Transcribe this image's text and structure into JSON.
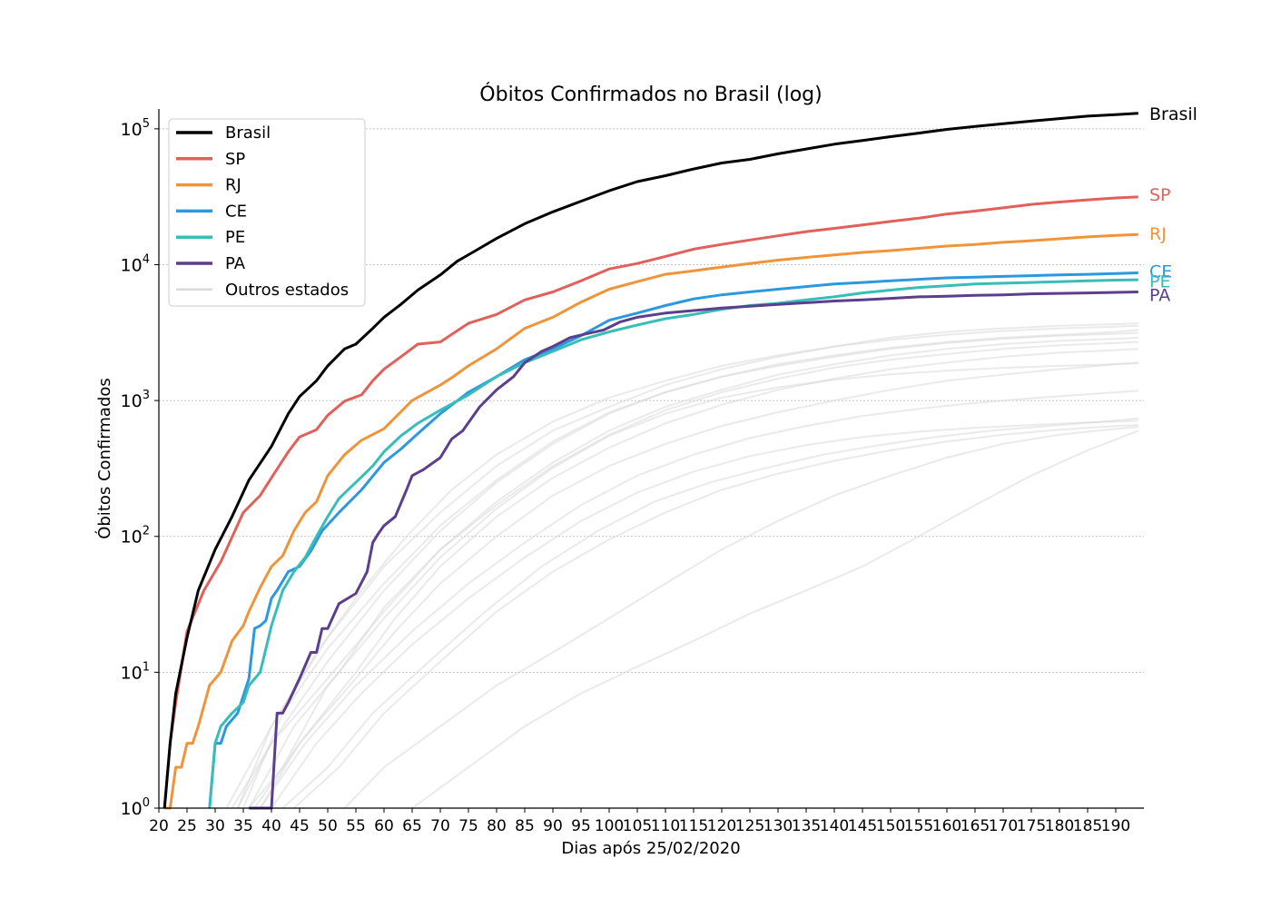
{
  "chart_data": {
    "type": "line",
    "title": "Óbitos Confirmados no Brasil (log)",
    "xlabel": "Dias após 25/02/2020",
    "ylabel": "Óbitos Confirmados",
    "yscale": "log",
    "xlim": [
      20,
      195
    ],
    "ylim": [
      1,
      140000
    ],
    "xticks": [
      20,
      25,
      30,
      35,
      40,
      45,
      50,
      55,
      60,
      65,
      70,
      75,
      80,
      85,
      90,
      95,
      100,
      105,
      110,
      115,
      120,
      125,
      130,
      135,
      140,
      145,
      150,
      155,
      160,
      165,
      170,
      175,
      180,
      185,
      190
    ],
    "yticks": [
      {
        "value": 1,
        "base": "10",
        "exp": "0"
      },
      {
        "value": 10,
        "base": "10",
        "exp": "1"
      },
      {
        "value": 100,
        "base": "10",
        "exp": "2"
      },
      {
        "value": 1000,
        "base": "10",
        "exp": "3"
      },
      {
        "value": 10000,
        "base": "10",
        "exp": "4"
      },
      {
        "value": 100000,
        "base": "10",
        "exp": "5"
      }
    ],
    "grid": "horizontal",
    "legend_position": "top-left",
    "series": [
      {
        "name": "Brasil",
        "color": "#000000",
        "label": "Brasil",
        "x": [
          21,
          22,
          23,
          25,
          27,
          30,
          33,
          36,
          40,
          43,
          45,
          48,
          50,
          53,
          55,
          58,
          60,
          63,
          66,
          70,
          73,
          76,
          80,
          85,
          90,
          95,
          100,
          105,
          110,
          115,
          120,
          125,
          130,
          135,
          140,
          145,
          150,
          155,
          160,
          165,
          170,
          175,
          180,
          185,
          190,
          194
        ],
        "y": [
          1,
          3,
          7,
          18,
          40,
          80,
          140,
          260,
          460,
          800,
          1070,
          1400,
          1800,
          2400,
          2600,
          3400,
          4100,
          5100,
          6500,
          8400,
          10600,
          12500,
          15600,
          20000,
          24500,
          29300,
          35000,
          40900,
          45200,
          50600,
          56000,
          59600,
          65500,
          71000,
          77000,
          82000,
          87500,
          93000,
          99000,
          104000,
          109000,
          114000,
          119000,
          124000,
          127000,
          130000
        ]
      },
      {
        "name": "SP",
        "color": "#e2605a",
        "label": "SP",
        "x": [
          21,
          22,
          23,
          25,
          28,
          31,
          35,
          38,
          40,
          43,
          45,
          48,
          50,
          53,
          56,
          58,
          60,
          63,
          66,
          70,
          75,
          80,
          85,
          90,
          95,
          100,
          105,
          110,
          115,
          120,
          125,
          130,
          135,
          140,
          145,
          150,
          155,
          160,
          165,
          170,
          175,
          180,
          185,
          190,
          194
        ],
        "y": [
          1,
          3,
          6,
          20,
          40,
          65,
          150,
          200,
          270,
          420,
          540,
          610,
          780,
          990,
          1100,
          1400,
          1700,
          2100,
          2600,
          2700,
          3700,
          4300,
          5500,
          6300,
          7600,
          9300,
          10200,
          11500,
          13000,
          14100,
          15200,
          16300,
          17500,
          18500,
          19600,
          20800,
          22000,
          23600,
          24800,
          26200,
          27800,
          28900,
          30000,
          31000,
          31500
        ]
      },
      {
        "name": "RJ",
        "color": "#f0943a",
        "label": "RJ",
        "x": [
          21,
          22,
          23,
          24,
          25,
          26,
          27,
          29,
          31,
          33,
          35,
          36,
          38,
          40,
          42,
          44,
          46,
          48,
          50,
          53,
          56,
          60,
          65,
          70,
          72,
          75,
          80,
          85,
          90,
          95,
          100,
          105,
          110,
          115,
          120,
          125,
          130,
          135,
          140,
          145,
          150,
          155,
          160,
          165,
          170,
          175,
          180,
          185,
          190,
          194
        ],
        "y": [
          1,
          1,
          2,
          2,
          3,
          3,
          4,
          8,
          10,
          17,
          22,
          28,
          42,
          60,
          72,
          110,
          150,
          180,
          280,
          400,
          510,
          620,
          1000,
          1300,
          1470,
          1800,
          2400,
          3400,
          4100,
          5300,
          6600,
          7500,
          8500,
          9000,
          9600,
          10200,
          10800,
          11300,
          11800,
          12300,
          12700,
          13200,
          13700,
          14100,
          14600,
          15000,
          15500,
          16000,
          16400,
          16700
        ]
      },
      {
        "name": "CE",
        "color": "#2b98df",
        "label": "CE",
        "x": [
          29,
          30,
          31,
          32,
          34,
          36,
          37,
          38,
          39,
          40,
          41,
          43,
          45,
          47,
          49,
          52,
          56,
          60,
          63,
          66,
          70,
          75,
          80,
          85,
          90,
          95,
          100,
          105,
          110,
          115,
          120,
          125,
          130,
          135,
          140,
          145,
          150,
          155,
          160,
          165,
          170,
          175,
          180,
          185,
          190,
          194
        ],
        "y": [
          1,
          3,
          3,
          4,
          5,
          9,
          21,
          22,
          24,
          35,
          40,
          55,
          60,
          78,
          110,
          150,
          220,
          350,
          440,
          570,
          800,
          1150,
          1500,
          2000,
          2400,
          3000,
          3900,
          4400,
          5000,
          5600,
          6000,
          6300,
          6600,
          6900,
          7200,
          7400,
          7600,
          7800,
          8000,
          8100,
          8200,
          8300,
          8400,
          8500,
          8600,
          8700
        ]
      },
      {
        "name": "PE",
        "color": "#38bdb8",
        "label": "PE",
        "x": [
          29,
          30,
          31,
          33,
          35,
          36,
          38,
          40,
          42,
          44,
          46,
          48,
          50,
          52,
          55,
          58,
          60,
          63,
          66,
          70,
          75,
          80,
          85,
          90,
          95,
          100,
          105,
          110,
          115,
          120,
          125,
          130,
          135,
          140,
          145,
          150,
          155,
          160,
          165,
          170,
          175,
          180,
          185,
          190,
          194
        ],
        "y": [
          1,
          3,
          4,
          5,
          6,
          8,
          10,
          22,
          40,
          55,
          70,
          100,
          140,
          190,
          250,
          330,
          420,
          550,
          680,
          850,
          1100,
          1500,
          1900,
          2300,
          2800,
          3200,
          3600,
          4000,
          4300,
          4700,
          5000,
          5200,
          5500,
          5800,
          6200,
          6500,
          6800,
          7000,
          7200,
          7300,
          7400,
          7500,
          7600,
          7700,
          7750
        ]
      },
      {
        "name": "PA",
        "color": "#5b3f8c",
        "label": "PA",
        "x": [
          36,
          37,
          39,
          40,
          41,
          42,
          43,
          45,
          47,
          48,
          49,
          50,
          52,
          55,
          57,
          58,
          59,
          60,
          62,
          64,
          65,
          67,
          70,
          72,
          74,
          77,
          80,
          83,
          85,
          88,
          90,
          93,
          96,
          99,
          102,
          105,
          110,
          115,
          120,
          125,
          130,
          135,
          140,
          145,
          150,
          155,
          160,
          165,
          170,
          175,
          180,
          185,
          190,
          194
        ],
        "y": [
          1,
          1,
          1,
          1,
          5,
          5,
          6,
          9,
          14,
          14,
          21,
          21,
          32,
          38,
          55,
          90,
          105,
          120,
          140,
          220,
          280,
          310,
          380,
          520,
          600,
          900,
          1200,
          1500,
          1900,
          2300,
          2500,
          2900,
          3100,
          3300,
          3800,
          4100,
          4400,
          4600,
          4800,
          4950,
          5100,
          5250,
          5400,
          5500,
          5650,
          5800,
          5850,
          5950,
          6000,
          6100,
          6150,
          6200,
          6250,
          6300
        ]
      }
    ],
    "other_states_label": "Outros estados",
    "other_states_color": "#d9d9d9",
    "other_states": [
      {
        "x": [
          32,
          40,
          50,
          60,
          70,
          80,
          90,
          100,
          110,
          120,
          130,
          140,
          150,
          160,
          170,
          180,
          190,
          194
        ],
        "y": [
          1,
          4,
          18,
          60,
          150,
          330,
          600,
          900,
          1300,
          1700,
          2100,
          2500,
          2900,
          3200,
          3400,
          3550,
          3650,
          3700
        ]
      },
      {
        "x": [
          34,
          40,
          50,
          60,
          70,
          80,
          90,
          100,
          110,
          120,
          130,
          140,
          150,
          160,
          170,
          180,
          190,
          194
        ],
        "y": [
          1,
          3,
          12,
          40,
          110,
          250,
          480,
          800,
          1150,
          1500,
          1850,
          2150,
          2450,
          2700,
          2900,
          3050,
          3200,
          3300
        ]
      },
      {
        "x": [
          35,
          42,
          50,
          60,
          70,
          80,
          90,
          100,
          110,
          120,
          130,
          140,
          150,
          160,
          170,
          180,
          190,
          194
        ],
        "y": [
          1,
          5,
          15,
          45,
          120,
          260,
          500,
          820,
          1150,
          1500,
          1800,
          2100,
          2400,
          2650,
          2850,
          3000,
          3100,
          3150
        ]
      },
      {
        "x": [
          33,
          40,
          50,
          60,
          70,
          80,
          90,
          100,
          110,
          120,
          130,
          140,
          150,
          160,
          170,
          180,
          190,
          194
        ],
        "y": [
          1,
          3,
          9,
          28,
          80,
          180,
          350,
          600,
          900,
          1200,
          1550,
          1850,
          2150,
          2400,
          2600,
          2750,
          2850,
          2900
        ]
      },
      {
        "x": [
          36,
          44,
          52,
          60,
          70,
          80,
          90,
          100,
          110,
          120,
          130,
          140,
          150,
          160,
          170,
          180,
          190,
          194
        ],
        "y": [
          1,
          4,
          10,
          30,
          80,
          170,
          330,
          560,
          850,
          1150,
          1450,
          1750,
          2000,
          2200,
          2400,
          2550,
          2650,
          2700
        ]
      },
      {
        "x": [
          38,
          45,
          55,
          62,
          70,
          80,
          90,
          100,
          110,
          120,
          130,
          140,
          150,
          160,
          170,
          180,
          190,
          194
        ],
        "y": [
          1,
          3,
          10,
          25,
          60,
          140,
          270,
          450,
          680,
          930,
          1200,
          1450,
          1700,
          1900,
          2100,
          2250,
          2350,
          2400
        ]
      },
      {
        "x": [
          36,
          42,
          50,
          60,
          70,
          80,
          90,
          100,
          110,
          120,
          130,
          140,
          150,
          160,
          170,
          180,
          190,
          194
        ],
        "y": [
          1,
          2,
          8,
          25,
          70,
          160,
          320,
          550,
          800,
          1050,
          1250,
          1420,
          1560,
          1660,
          1740,
          1800,
          1850,
          1880
        ]
      },
      {
        "x": [
          37,
          45,
          55,
          62,
          70,
          80,
          90,
          100,
          110,
          120,
          130,
          140,
          150,
          160,
          170,
          180,
          190,
          194
        ],
        "y": [
          1,
          3,
          9,
          20,
          45,
          100,
          200,
          330,
          480,
          650,
          820,
          1000,
          1200,
          1400,
          1550,
          1700,
          1850,
          1900
        ]
      },
      {
        "x": [
          38,
          46,
          55,
          65,
          75,
          85,
          95,
          105,
          115,
          125,
          135,
          145,
          155,
          165,
          175,
          185,
          194
        ],
        "y": [
          1,
          3,
          8,
          20,
          45,
          90,
          170,
          280,
          400,
          530,
          650,
          770,
          870,
          960,
          1040,
          1110,
          1180
        ]
      },
      {
        "x": [
          40,
          48,
          56,
          65,
          75,
          85,
          95,
          105,
          115,
          125,
          135,
          145,
          155,
          165,
          175,
          185,
          194
        ],
        "y": [
          1,
          3,
          7,
          16,
          35,
          70,
          130,
          210,
          300,
          390,
          470,
          540,
          590,
          630,
          660,
          690,
          710
        ]
      },
      {
        "x": [
          42,
          50,
          58,
          68,
          78,
          88,
          98,
          108,
          118,
          128,
          138,
          148,
          158,
          168,
          178,
          188,
          194
        ],
        "y": [
          1,
          2,
          5,
          12,
          28,
          60,
          110,
          180,
          250,
          320,
          400,
          470,
          540,
          600,
          650,
          700,
          740
        ]
      },
      {
        "x": [
          44,
          52,
          60,
          70,
          80,
          90,
          100,
          110,
          120,
          130,
          140,
          150,
          160,
          170,
          180,
          190,
          194
        ],
        "y": [
          1,
          2,
          5,
          12,
          28,
          55,
          95,
          150,
          220,
          290,
          360,
          430,
          500,
          560,
          610,
          650,
          660
        ]
      },
      {
        "x": [
          53,
          60,
          70,
          80,
          90,
          100,
          110,
          120,
          130,
          140,
          150,
          160,
          170,
          180,
          190,
          194
        ],
        "y": [
          1,
          2,
          4,
          8,
          14,
          25,
          45,
          80,
          130,
          200,
          280,
          380,
          480,
          560,
          620,
          640
        ]
      },
      {
        "x": [
          65,
          75,
          85,
          95,
          105,
          115,
          125,
          135,
          145,
          155,
          165,
          175,
          185,
          194
        ],
        "y": [
          1,
          2,
          4,
          7,
          11,
          17,
          27,
          40,
          60,
          100,
          170,
          280,
          430,
          600
        ]
      },
      {
        "x": [
          34,
          40,
          48,
          56,
          64,
          72,
          80,
          90,
          100,
          110,
          120,
          130,
          140,
          150,
          160,
          170,
          180,
          190,
          194
        ],
        "y": [
          1,
          4,
          14,
          40,
          100,
          220,
          400,
          700,
          1050,
          1400,
          1800,
          2150,
          2500,
          2800,
          3050,
          3250,
          3400,
          3500,
          3550
        ]
      }
    ],
    "end_labels": [
      {
        "text": "Brasil",
        "color": "#000000",
        "y": 130000
      },
      {
        "text": "SP",
        "color": "#e2605a",
        "y": 33000
      },
      {
        "text": "RJ",
        "color": "#f0943a",
        "y": 17000
      },
      {
        "text": "CE",
        "color": "#2b98df",
        "y": 9000
      },
      {
        "text": "PE",
        "color": "#38bdb8",
        "y": 7600
      },
      {
        "text": "PA",
        "color": "#5b3f8c",
        "y": 6000
      }
    ]
  }
}
